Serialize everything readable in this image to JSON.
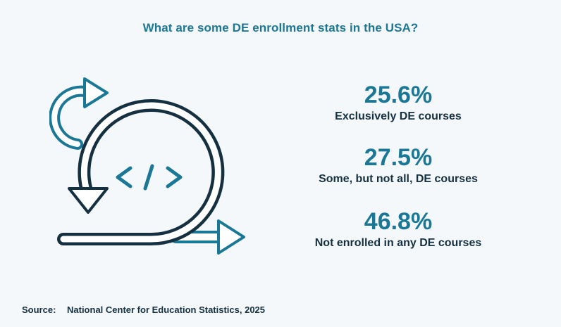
{
  "title": "What are some DE enrollment stats in the USA?",
  "stats": [
    {
      "value": "25.6%",
      "label": "Exclusively DE courses"
    },
    {
      "value": "27.5%",
      "label": "Some, but not all, DE courses"
    },
    {
      "value": "46.8%",
      "label": "Not enrolled in any DE courses"
    }
  ],
  "source": {
    "label": "Source:",
    "text": "National Center for Education Statistics, 2025"
  },
  "illustration": {
    "icon": "agile-cycle-code-icon",
    "code_glyph": "< / >"
  },
  "colors": {
    "background": "#f5f8fa",
    "accent_teal": "#1a7896",
    "dark_navy": "#143041",
    "white": "#ffffff"
  }
}
